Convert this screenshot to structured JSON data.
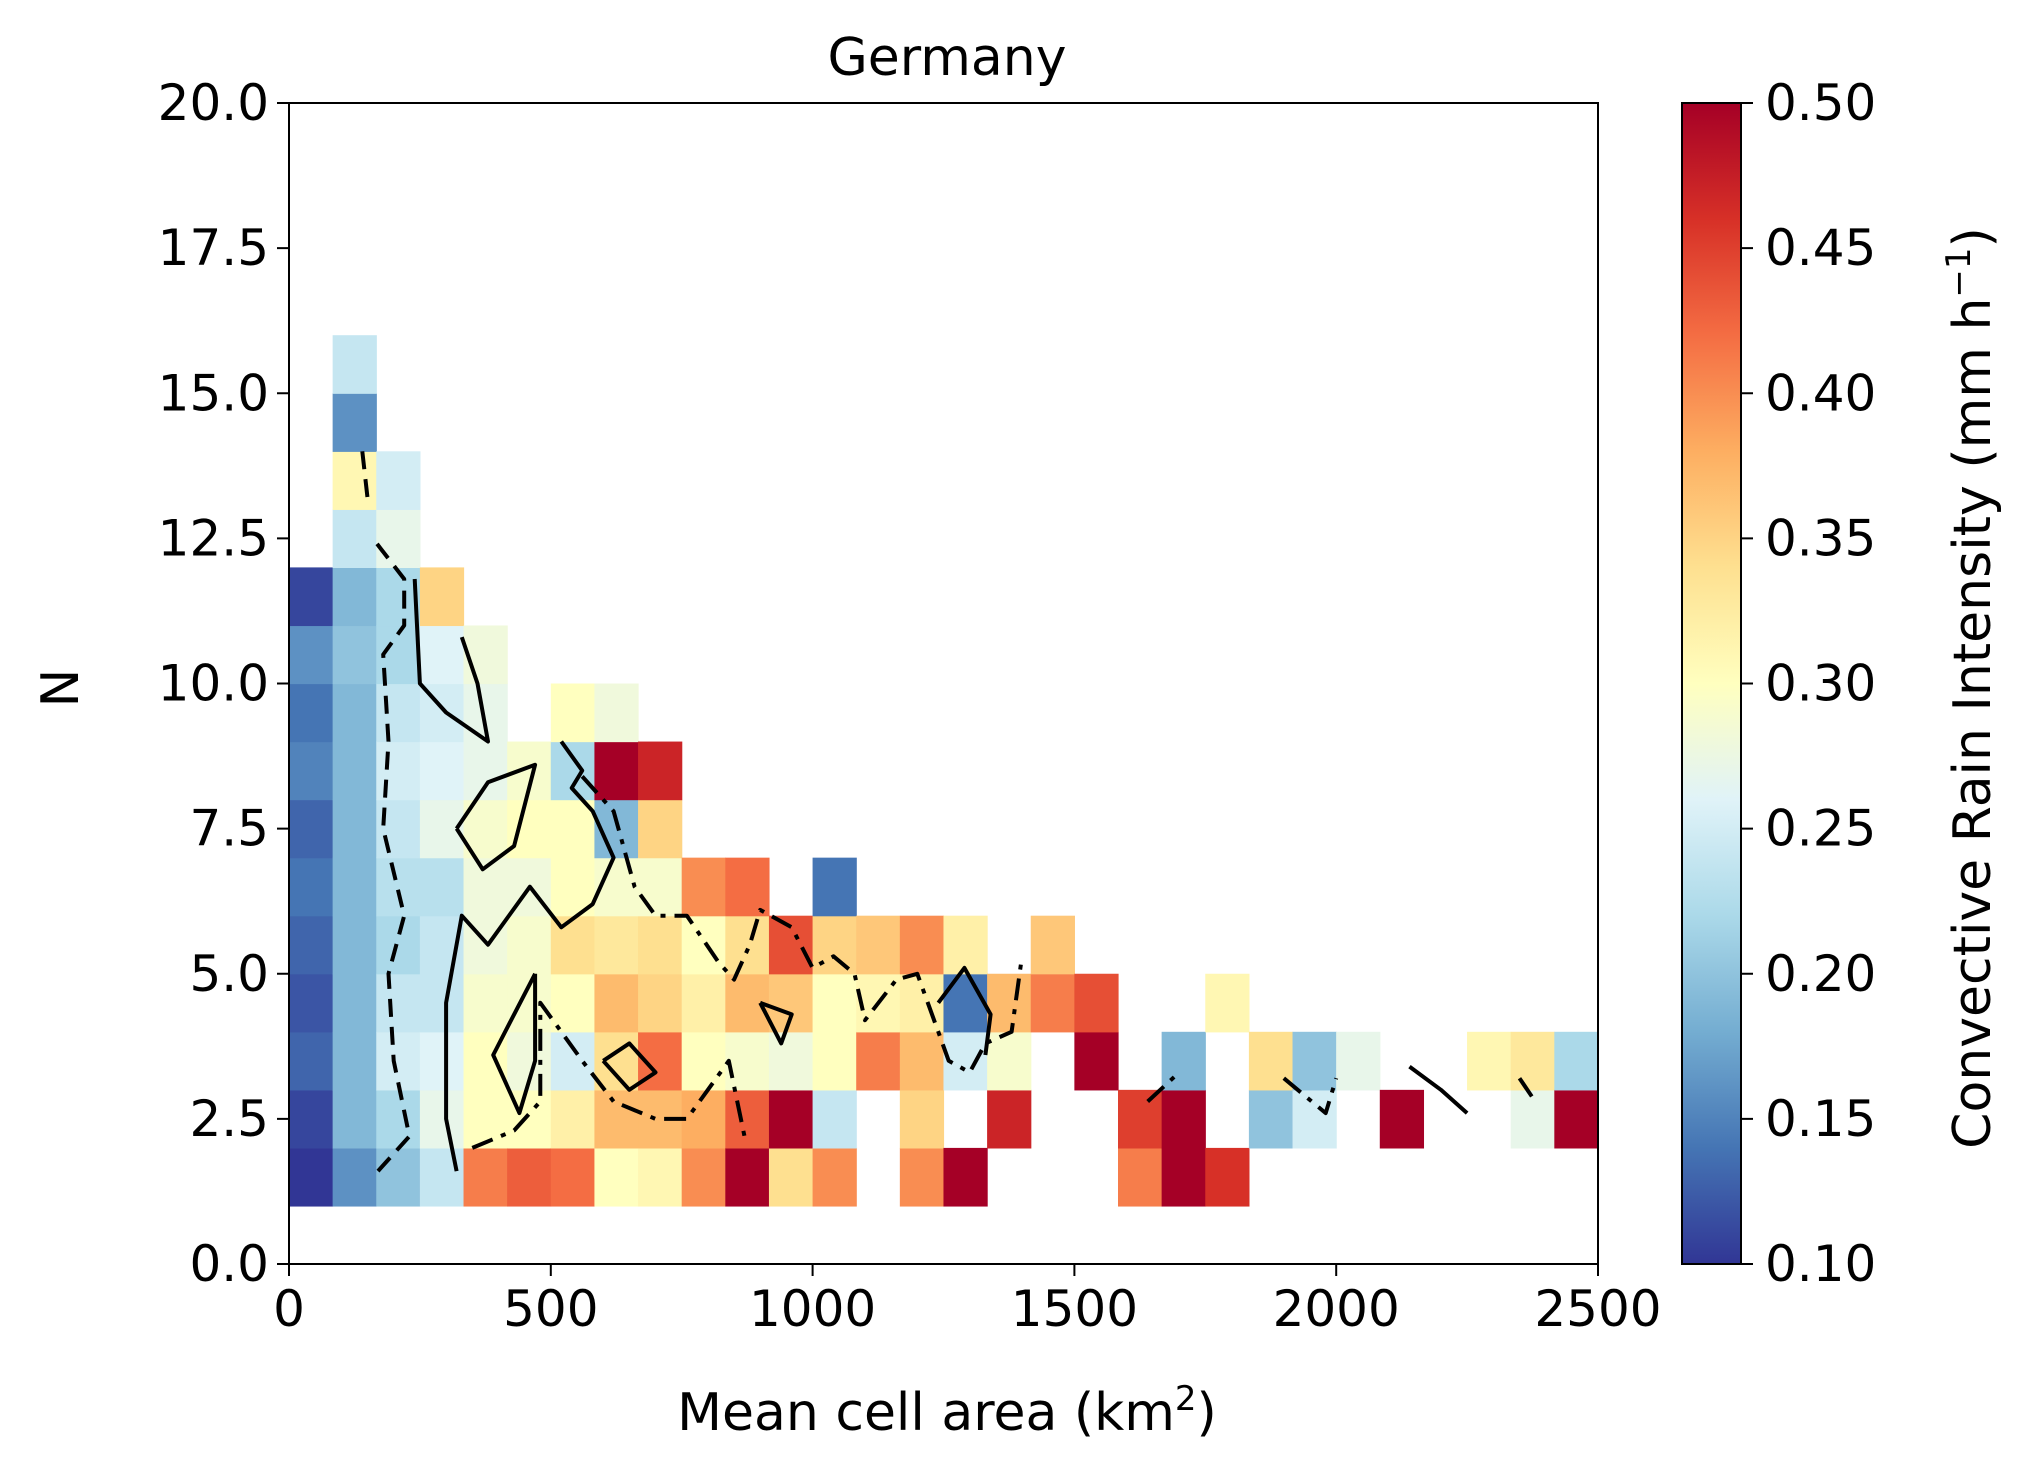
{
  "chart_data": {
    "type": "heatmap",
    "title": "Germany",
    "xlabel": "Mean cell area (km",
    "xlabel_sup": "2",
    "xlabel_end": ")",
    "ylabel": "N",
    "xlim": [
      0,
      2500
    ],
    "ylim": [
      0,
      20
    ],
    "x_ticks": [
      "0",
      "500",
      "1000",
      "1500",
      "2000",
      "2500"
    ],
    "y_ticks": [
      "0.0",
      "2.5",
      "5.0",
      "7.5",
      "10.0",
      "12.5",
      "15.0",
      "17.5",
      "20.0"
    ],
    "x_bin_width": 83.33,
    "y_bin_width": 1,
    "colorbar": {
      "label": "Convective Rain Intensity (mm h",
      "label_sup": "−1",
      "label_end": ")",
      "min": 0.1,
      "max": 0.5,
      "ticks": [
        "0.10",
        "0.15",
        "0.20",
        "0.25",
        "0.30",
        "0.35",
        "0.40",
        "0.45",
        "0.50"
      ],
      "colormap": "RdYlBu_r",
      "stops": [
        "#313695",
        "#4575b4",
        "#74add1",
        "#abd9e9",
        "#e0f3f8",
        "#ffffbf",
        "#fee090",
        "#fdae61",
        "#f46d43",
        "#d73027",
        "#a50026"
      ]
    },
    "cells": [
      [
        0,
        1,
        0.1
      ],
      [
        0,
        2,
        0.11
      ],
      [
        0,
        3,
        0.13
      ],
      [
        0,
        4,
        0.12
      ],
      [
        0,
        5,
        0.13
      ],
      [
        0,
        6,
        0.14
      ],
      [
        0,
        7,
        0.13
      ],
      [
        0,
        8,
        0.15
      ],
      [
        0,
        9,
        0.14
      ],
      [
        0,
        10,
        0.16
      ],
      [
        0,
        11,
        0.11
      ],
      [
        1,
        1,
        0.16
      ],
      [
        1,
        2,
        0.19
      ],
      [
        1,
        3,
        0.19
      ],
      [
        1,
        4,
        0.19
      ],
      [
        1,
        5,
        0.19
      ],
      [
        1,
        6,
        0.19
      ],
      [
        1,
        7,
        0.19
      ],
      [
        1,
        8,
        0.19
      ],
      [
        1,
        9,
        0.19
      ],
      [
        1,
        10,
        0.2
      ],
      [
        1,
        11,
        0.19
      ],
      [
        1,
        12,
        0.24
      ],
      [
        1,
        13,
        0.31
      ],
      [
        1,
        14,
        0.16
      ],
      [
        1,
        15,
        0.24
      ],
      [
        2,
        1,
        0.2
      ],
      [
        2,
        2,
        0.22
      ],
      [
        2,
        3,
        0.25
      ],
      [
        2,
        4,
        0.24
      ],
      [
        2,
        5,
        0.22
      ],
      [
        2,
        6,
        0.23
      ],
      [
        2,
        7,
        0.24
      ],
      [
        2,
        8,
        0.25
      ],
      [
        2,
        9,
        0.24
      ],
      [
        2,
        10,
        0.22
      ],
      [
        2,
        11,
        0.22
      ],
      [
        2,
        12,
        0.27
      ],
      [
        2,
        13,
        0.25
      ],
      [
        3,
        1,
        0.24
      ],
      [
        3,
        2,
        0.27
      ],
      [
        3,
        3,
        0.26
      ],
      [
        3,
        4,
        0.24
      ],
      [
        3,
        5,
        0.24
      ],
      [
        3,
        6,
        0.23
      ],
      [
        3,
        7,
        0.27
      ],
      [
        3,
        8,
        0.26
      ],
      [
        3,
        9,
        0.25
      ],
      [
        3,
        10,
        0.26
      ],
      [
        3,
        11,
        0.35
      ],
      [
        4,
        1,
        0.41
      ],
      [
        4,
        2,
        0.3
      ],
      [
        4,
        3,
        0.3
      ],
      [
        4,
        4,
        0.29
      ],
      [
        4,
        5,
        0.28
      ],
      [
        4,
        6,
        0.28
      ],
      [
        4,
        7,
        0.29
      ],
      [
        4,
        8,
        0.27
      ],
      [
        4,
        9,
        0.27
      ],
      [
        4,
        10,
        0.28
      ],
      [
        5,
        1,
        0.43
      ],
      [
        5,
        2,
        0.3
      ],
      [
        5,
        3,
        0.28
      ],
      [
        5,
        4,
        0.29
      ],
      [
        5,
        5,
        0.29
      ],
      [
        5,
        6,
        0.28
      ],
      [
        5,
        7,
        0.3
      ],
      [
        5,
        8,
        0.29
      ],
      [
        6,
        1,
        0.42
      ],
      [
        6,
        2,
        0.32
      ],
      [
        6,
        3,
        0.25
      ],
      [
        6,
        4,
        0.3
      ],
      [
        6,
        5,
        0.34
      ],
      [
        6,
        6,
        0.3
      ],
      [
        6,
        7,
        0.3
      ],
      [
        6,
        8,
        0.22
      ],
      [
        6,
        9,
        0.3
      ],
      [
        7,
        1,
        0.3
      ],
      [
        7,
        2,
        0.37
      ],
      [
        7,
        3,
        0.34
      ],
      [
        7,
        4,
        0.37
      ],
      [
        7,
        5,
        0.33
      ],
      [
        7,
        6,
        0.29
      ],
      [
        7,
        7,
        0.19
      ],
      [
        7,
        8,
        0.5
      ],
      [
        7,
        9,
        0.28
      ],
      [
        8,
        1,
        0.31
      ],
      [
        8,
        2,
        0.37
      ],
      [
        8,
        3,
        0.42
      ],
      [
        8,
        4,
        0.35
      ],
      [
        8,
        5,
        0.34
      ],
      [
        8,
        6,
        0.29
      ],
      [
        8,
        7,
        0.35
      ],
      [
        8,
        8,
        0.47
      ],
      [
        9,
        1,
        0.4
      ],
      [
        9,
        2,
        0.38
      ],
      [
        9,
        3,
        0.3
      ],
      [
        9,
        4,
        0.32
      ],
      [
        9,
        5,
        0.3
      ],
      [
        9,
        6,
        0.4
      ],
      [
        10,
        1,
        0.5
      ],
      [
        10,
        2,
        0.43
      ],
      [
        10,
        3,
        0.29
      ],
      [
        10,
        4,
        0.37
      ],
      [
        10,
        5,
        0.34
      ],
      [
        10,
        6,
        0.42
      ],
      [
        11,
        1,
        0.34
      ],
      [
        11,
        2,
        0.5
      ],
      [
        11,
        3,
        0.28
      ],
      [
        11,
        4,
        0.36
      ],
      [
        11,
        5,
        0.44
      ],
      [
        12,
        1,
        0.4
      ],
      [
        12,
        2,
        0.24
      ],
      [
        12,
        3,
        0.3
      ],
      [
        12,
        4,
        0.3
      ],
      [
        12,
        5,
        0.35
      ],
      [
        12,
        6,
        0.14
      ],
      [
        13,
        3,
        0.41
      ],
      [
        13,
        4,
        0.31
      ],
      [
        13,
        5,
        0.36
      ],
      [
        14,
        1,
        0.4
      ],
      [
        14,
        2,
        0.35
      ],
      [
        14,
        3,
        0.37
      ],
      [
        14,
        4,
        0.32
      ],
      [
        14,
        5,
        0.4
      ],
      [
        15,
        1,
        0.5
      ],
      [
        15,
        3,
        0.25
      ],
      [
        15,
        4,
        0.14
      ],
      [
        15,
        5,
        0.32
      ],
      [
        16,
        2,
        0.47
      ],
      [
        16,
        3,
        0.29
      ],
      [
        16,
        4,
        0.37
      ],
      [
        17,
        4,
        0.41
      ],
      [
        17,
        5,
        0.36
      ],
      [
        18,
        3,
        0.5
      ],
      [
        18,
        4,
        0.44
      ],
      [
        19,
        1,
        0.41
      ],
      [
        19,
        2,
        0.45
      ],
      [
        20,
        1,
        0.5
      ],
      [
        20,
        2,
        0.5
      ],
      [
        20,
        3,
        0.19
      ],
      [
        21,
        1,
        0.46
      ],
      [
        21,
        4,
        0.31
      ],
      [
        22,
        2,
        0.2
      ],
      [
        22,
        3,
        0.34
      ],
      [
        23,
        2,
        0.25
      ],
      [
        23,
        3,
        0.2
      ],
      [
        24,
        3,
        0.27
      ],
      [
        25,
        2,
        0.5
      ],
      [
        27,
        3,
        0.31
      ],
      [
        28,
        2,
        0.27
      ],
      [
        28,
        3,
        0.33
      ],
      [
        29,
        2,
        0.5
      ],
      [
        29,
        3,
        0.22
      ]
    ],
    "contours": [
      {
        "style": "dashed",
        "paths": [
          [
            [
              170,
              1.6
            ],
            [
              230,
              2.2
            ],
            [
              200,
              3.5
            ],
            [
              190,
              5.0
            ],
            [
              220,
              6.0
            ],
            [
              180,
              7.5
            ],
            [
              190,
              9.0
            ],
            [
              180,
              10.5
            ],
            [
              220,
              11.0
            ],
            [
              220,
              11.8
            ],
            [
              160,
              12.5
            ]
          ],
          [
            [
              140,
              14.0
            ],
            [
              150,
              13.2
            ]
          ]
        ]
      },
      {
        "style": "solid",
        "paths": [
          [
            [
              240,
              11.8
            ],
            [
              250,
              10.0
            ],
            [
              300,
              9.5
            ],
            [
              380,
              9.0
            ],
            [
              360,
              10.0
            ],
            [
              330,
              10.8
            ]
          ],
          [
            [
              320,
              1.6
            ],
            [
              300,
              2.5
            ],
            [
              300,
              4.5
            ],
            [
              330,
              6.0
            ],
            [
              380,
              5.5
            ],
            [
              460,
              6.5
            ],
            [
              520,
              5.8
            ],
            [
              580,
              6.2
            ],
            [
              620,
              7.0
            ],
            [
              580,
              7.8
            ],
            [
              540,
              8.2
            ],
            [
              560,
              8.5
            ],
            [
              520,
              9.0
            ]
          ],
          [
            [
              320,
              7.5
            ],
            [
              380,
              8.3
            ],
            [
              470,
              8.6
            ],
            [
              430,
              7.2
            ],
            [
              370,
              6.8
            ],
            [
              320,
              7.5
            ]
          ],
          [
            [
              470,
              5.0
            ],
            [
              430,
              4.3
            ],
            [
              390,
              3.6
            ],
            [
              440,
              2.6
            ],
            [
              470,
              3.5
            ],
            [
              470,
              5.0
            ]
          ],
          [
            [
              600,
              3.5
            ],
            [
              650,
              3.8
            ],
            [
              700,
              3.3
            ],
            [
              650,
              3.0
            ],
            [
              600,
              3.5
            ]
          ],
          [
            [
              900,
              4.5
            ],
            [
              940,
              3.8
            ],
            [
              960,
              4.3
            ],
            [
              900,
              4.5
            ]
          ],
          [
            [
              1240,
              4.5
            ],
            [
              1290,
              5.1
            ],
            [
              1340,
              4.3
            ],
            [
              1330,
              3.6
            ]
          ],
          [
            [
              2140,
              3.4
            ],
            [
              2200,
              3.0
            ],
            [
              2250,
              2.6
            ]
          ]
        ]
      },
      {
        "style": "dashdot",
        "paths": [
          [
            [
              350,
              2.0
            ],
            [
              430,
              2.3
            ],
            [
              480,
              2.8
            ],
            [
              480,
              4.5
            ],
            [
              520,
              4.0
            ],
            [
              560,
              3.5
            ],
            [
              620,
              2.8
            ],
            [
              700,
              2.5
            ],
            [
              760,
              2.5
            ],
            [
              800,
              3.0
            ],
            [
              840,
              3.5
            ],
            [
              870,
              2.2
            ]
          ],
          [
            [
              560,
              8.4
            ],
            [
              620,
              7.8
            ],
            [
              660,
              6.5
            ],
            [
              700,
              6.0
            ],
            [
              760,
              6.0
            ],
            [
              820,
              5.2
            ],
            [
              850,
              4.9
            ],
            [
              880,
              5.5
            ],
            [
              900,
              6.1
            ],
            [
              960,
              5.8
            ],
            [
              1000,
              5.1
            ],
            [
              1040,
              5.3
            ],
            [
              1080,
              5.0
            ],
            [
              1100,
              4.2
            ],
            [
              1160,
              4.9
            ],
            [
              1200,
              5.0
            ],
            [
              1240,
              4.0
            ],
            [
              1260,
              3.5
            ],
            [
              1300,
              3.3
            ],
            [
              1330,
              3.8
            ],
            [
              1380,
              4.0
            ],
            [
              1400,
              5.3
            ]
          ],
          [
            [
              1640,
              2.8
            ],
            [
              1700,
              3.3
            ]
          ],
          [
            [
              1900,
              3.2
            ],
            [
              1940,
              2.9
            ],
            [
              1980,
              2.6
            ],
            [
              2000,
              3.2
            ]
          ],
          [
            [
              2350,
              3.2
            ],
            [
              2380,
              2.8
            ]
          ]
        ]
      }
    ]
  }
}
